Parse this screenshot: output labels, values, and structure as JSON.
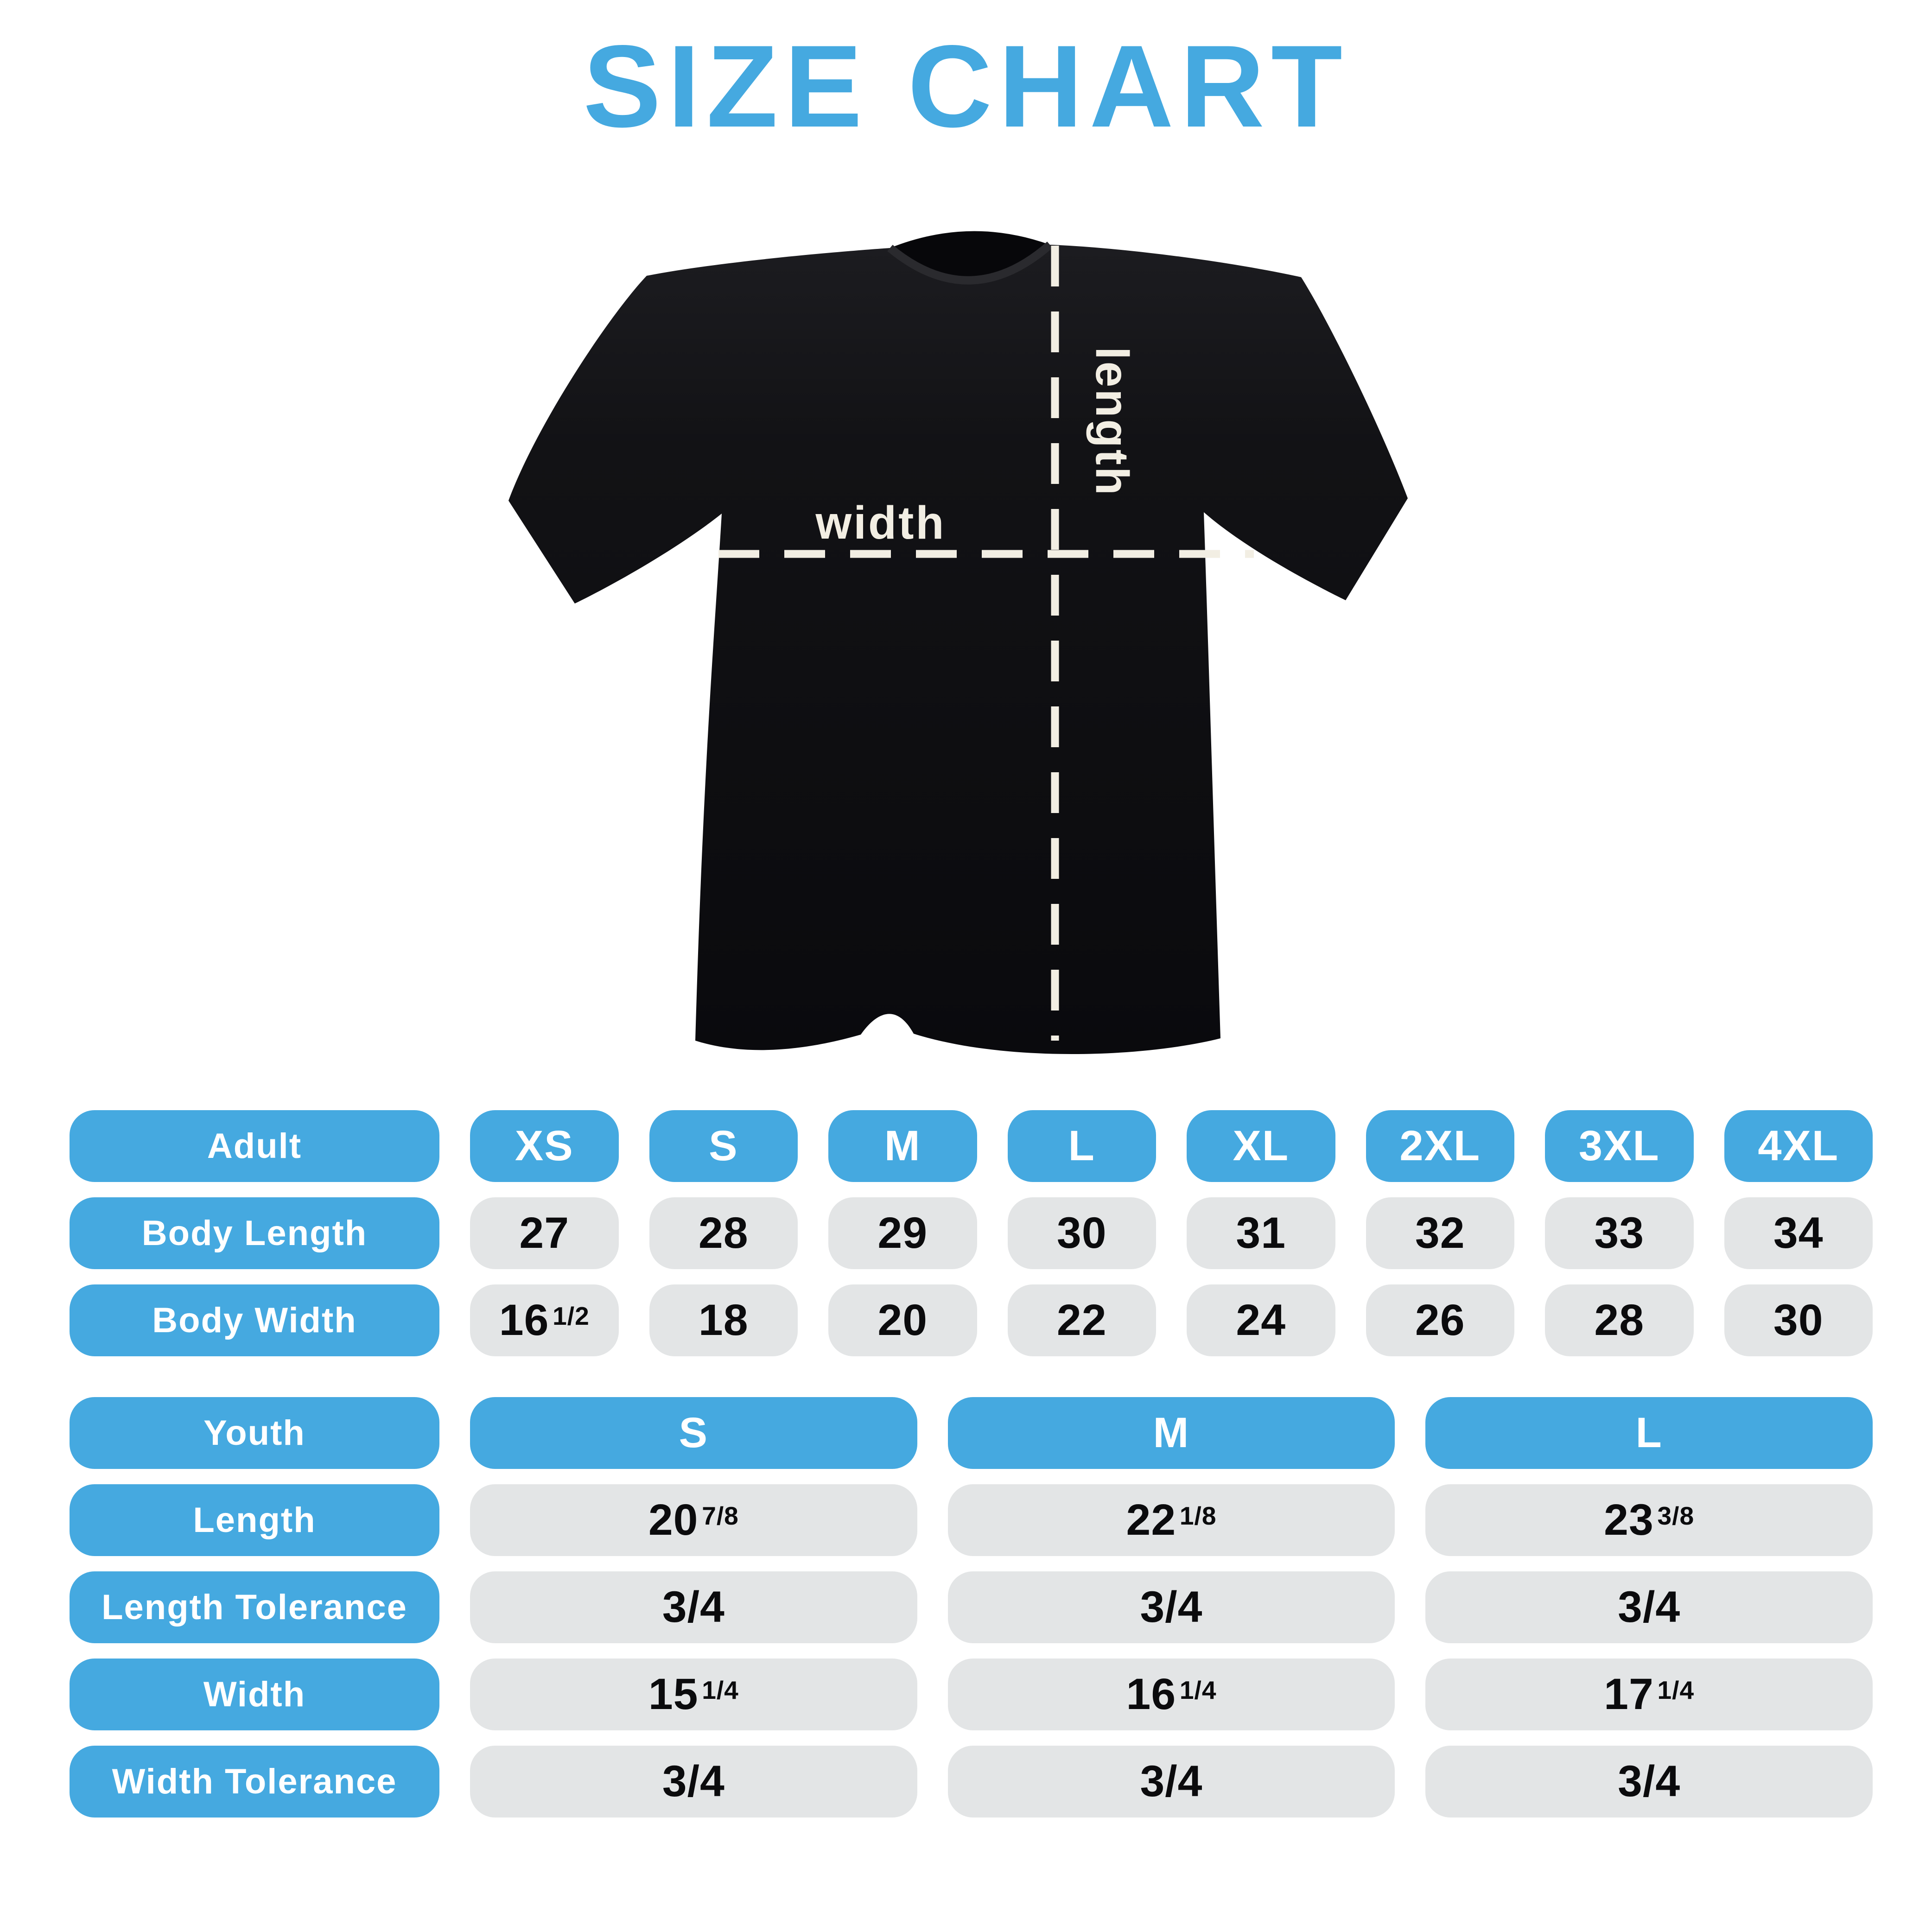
{
  "title": "SIZE CHART",
  "colors": {
    "accent_blue": "#45A9E0",
    "pill_gray": "#E3E5E6",
    "value_text": "#0B0B0D",
    "shirt_black": "#111114",
    "dash_cream": "#F2EEE3"
  },
  "diagram": {
    "shirt": "black-tshirt",
    "width_label": "width",
    "length_label": "length"
  },
  "adult_table": {
    "header": [
      "Adult",
      "XS",
      "S",
      "M",
      "L",
      "XL",
      "2XL",
      "3XL",
      "4XL"
    ],
    "rows": [
      {
        "label": "Body Length",
        "values": [
          "27",
          "28",
          "29",
          "30",
          "31",
          "32",
          "33",
          "34"
        ]
      },
      {
        "label": "Body Width",
        "values": [
          "16 1/2",
          "18",
          "20",
          "22",
          "24",
          "26",
          "28",
          "30"
        ]
      }
    ]
  },
  "youth_table": {
    "header": [
      "Youth",
      "S",
      "M",
      "L"
    ],
    "rows": [
      {
        "label": "Length",
        "values": [
          "20 7/8",
          "22 1/8",
          "23 3/8"
        ]
      },
      {
        "label": "Length Tolerance",
        "values": [
          "3/4",
          "3/4",
          "3/4"
        ]
      },
      {
        "label": "Width",
        "values": [
          "15 1/4",
          "16 1/4",
          "17 1/4"
        ]
      },
      {
        "label": "Width Tolerance",
        "values": [
          "3/4",
          "3/4",
          "3/4"
        ]
      }
    ]
  }
}
